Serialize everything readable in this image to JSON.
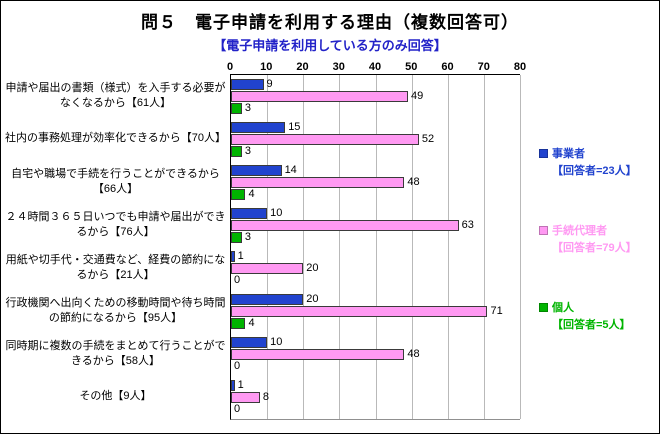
{
  "title": "問５　電子申請を利用する理由（複数回答可）",
  "subtitle": "【電子申請を利用している方のみ回答】",
  "chart_data": {
    "type": "bar",
    "orientation": "horizontal",
    "xlim": [
      0,
      80
    ],
    "ticks": [
      0,
      10,
      20,
      30,
      40,
      50,
      60,
      70,
      80
    ],
    "grid": true,
    "legend_position": "right",
    "value_labels": true,
    "categories": [
      "申請や届出の書類（様式）を入手する必要がなくなるから【61人】",
      "社内の事務処理が効率化できるから【70人】",
      "自宅や職場で手続を行うことができるから【66人】",
      "２４時間３６５日いつでも申請や届出ができるから【76人】",
      "用紙や切手代・交通費など、経費の節約になるから【21人】",
      "行政機関へ出向くための移動時間や待ち時間の節約になるから【95人】",
      "同時期に複数の手続をまとめて行うことができるから【58人】",
      "その他【9人】"
    ],
    "series": [
      {
        "name": "事業者",
        "respondents": "【回答者=23人】",
        "color": "#2143ce",
        "values": [
          9,
          15,
          14,
          10,
          1,
          20,
          10,
          1
        ]
      },
      {
        "name": "手続代理者",
        "respondents": "【回答者=79人】",
        "color": "#ff99f2",
        "values": [
          49,
          52,
          48,
          63,
          20,
          71,
          48,
          8
        ]
      },
      {
        "name": "個人",
        "respondents": "【回答者=5人】",
        "color": "#00b400",
        "values": [
          3,
          3,
          4,
          3,
          0,
          4,
          0,
          0
        ]
      }
    ]
  },
  "colors": {
    "subtitle": "#2222c8",
    "gridline": "#b9b9b9",
    "axis": "#000000"
  }
}
